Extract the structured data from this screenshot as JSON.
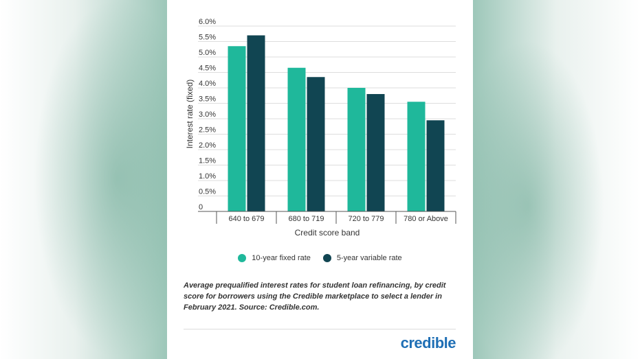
{
  "colors": {
    "series1": "#1fb89b",
    "series2": "#114552",
    "grid": "#dddddd",
    "text": "#333333",
    "brand": "#1f6fb5"
  },
  "chart_data": {
    "type": "bar",
    "categories": [
      "640 to 679",
      "680 to 719",
      "720 to 779",
      "780 or Above"
    ],
    "series": [
      {
        "name": "10-year fixed rate",
        "values": [
          5.35,
          4.65,
          4.0,
          3.55
        ]
      },
      {
        "name": "5-year variable rate",
        "values": [
          5.7,
          4.35,
          3.8,
          2.95
        ]
      }
    ],
    "xlabel": "Credit score band",
    "ylabel": "Interest rate (fixed)",
    "ylim": [
      0,
      6.0
    ],
    "yticks": [
      "0",
      "0.5%",
      "1.0%",
      "1.5%",
      "2.0%",
      "2.5%",
      "3.0%",
      "3.5%",
      "4.0%",
      "4.5%",
      "5.0%",
      "5.5%",
      "6.0%"
    ],
    "grid": true,
    "legend": "bottom"
  },
  "caption": "Average prequalified interest rates for student loan refinancing, by credit score for borrowers using the Credible marketplace to select a lender in February 2021. Source: Credible.com.",
  "brand": "credible"
}
